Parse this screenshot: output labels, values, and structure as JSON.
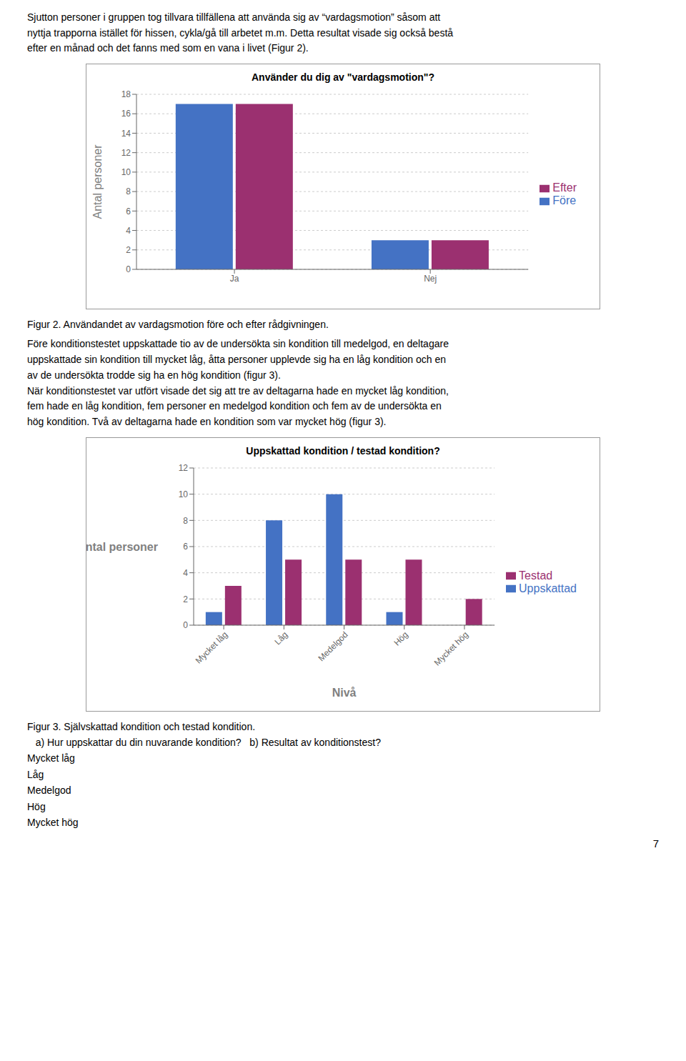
{
  "chart_data": [
    {
      "type": "bar",
      "title": "Använder du dig av \"vardagsmotion\"?",
      "y_label": "Antal personer",
      "categories": [
        "Ja",
        "Nej"
      ],
      "series": [
        {
          "name": "Före",
          "color": "#4472C4",
          "values": [
            17,
            3
          ]
        },
        {
          "name": "Efter",
          "color": "#9B3070",
          "values": [
            17,
            3
          ]
        }
      ],
      "ylim": [
        0,
        18
      ],
      "yticks": [
        0,
        2,
        4,
        6,
        8,
        10,
        12,
        14,
        16,
        18
      ],
      "grid": true,
      "legend": "right",
      "annotations": [
        "Sjutton personer i gruppen tog tillvara tillfällena att använda sig av “vardagsmotion” såsom att\nnyttja trapporna istället för hissen, cykla/gå till arbetet m.m. Detta resultat visade sig också bestå\nefter en månad och det fanns med som en vana i livet (Figur 2).",
        "Figur 2. Användandet av vardagsmotion före och efter rådgivningen."
      ]
    },
    {
      "type": "bar",
      "title": "Uppskattad kondition / testad kondition?",
      "x_label": "Nivå",
      "y_label": "Antal personer",
      "categories": [
        "Mycket låg",
        "Låg",
        "Medelgod",
        "Hög",
        "Mycket hög"
      ],
      "series": [
        {
          "name": "Uppskattad",
          "color": "#4472C4",
          "values": [
            1,
            8,
            10,
            1,
            0
          ]
        },
        {
          "name": "Testad",
          "color": "#9B3070",
          "values": [
            3,
            5,
            5,
            5,
            2
          ]
        }
      ],
      "ylim": [
        0,
        12
      ],
      "yticks": [
        0,
        2,
        4,
        6,
        8,
        10,
        12
      ],
      "grid": true,
      "legend": "right",
      "annotations": [
        "Före konditionstestet uppskattade tio av de undersökta sin kondition till medelgod, en deltagare\nuppskattade sin kondition till mycket låg, åtta personer upplevde sig ha en låg kondition och en\nav de undersökta trodde sig ha en hög kondition (figur 3).\nNär konditionstestet var utfört visade det sig att tre av deltagarna hade en mycket låg kondition,\nfem hade en låg kondition, fem personer en medelgod kondition och fem av de undersökta en\nhög kondition. Två av deltagarna hade en kondition som var mycket hög (figur 3).",
        "Figur 3. Självskattad kondition och testad kondition.",
        "   a) Hur uppskattar du din nuvarande kondition?   b) Resultat av konditionstest?",
        "Mycket låg",
        "Låg",
        "Medelgod",
        "Hög",
        "Mycket hög",
        "7"
      ]
    }
  ]
}
